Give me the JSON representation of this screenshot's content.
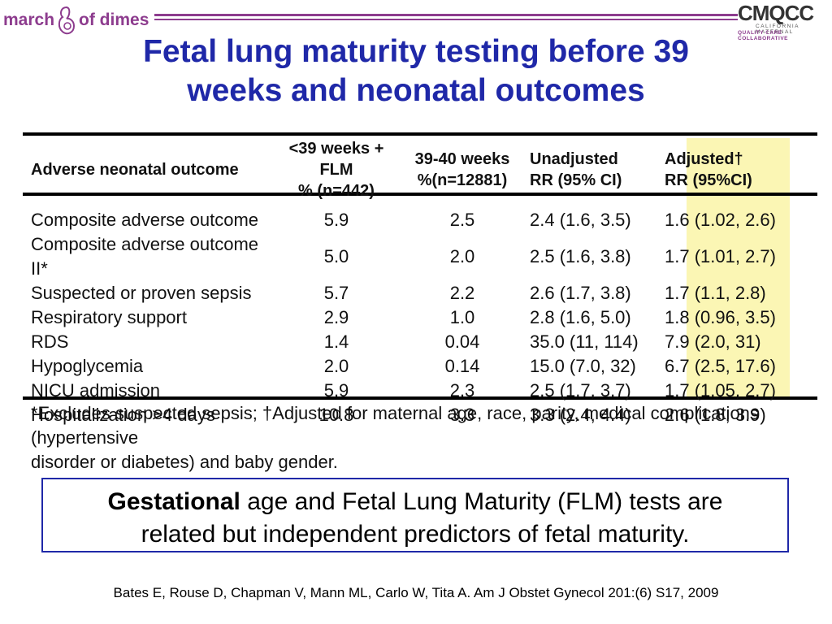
{
  "logos": {
    "left_part1": "march",
    "left_part2": "of dimes",
    "right_main": "CMQCC",
    "right_line1": "CALIFORNIA MATERNAL",
    "right_line2": "QUALITY CARE COLLABORATIVE"
  },
  "title_line1": "Fetal lung maturity testing before 39",
  "title_line2": "weeks and neonatal outcomes",
  "table": {
    "headers": [
      {
        "line1": "Adverse neonatal outcome",
        "line2": ""
      },
      {
        "line1": "<39 weeks + FLM",
        "line2": "% (n=442)"
      },
      {
        "line1": "39-40 weeks",
        "line2": "%(n=12881)"
      },
      {
        "line1": "Unadjusted",
        "line2": "RR (95% CI)"
      },
      {
        "line1": "Adjusted†",
        "line2": "RR (95%CI)"
      }
    ],
    "rows": [
      [
        "Composite adverse outcome",
        "5.9",
        "2.5",
        "2.4 (1.6, 3.5)",
        "1.6 (1.02, 2.6)"
      ],
      [
        "Composite adverse outcome II*",
        "5.0",
        "2.0",
        "2.5 (1.6, 3.8)",
        "1.7 (1.01, 2.7)"
      ],
      [
        "Suspected or proven sepsis",
        "5.7",
        "2.2",
        "2.6 (1.7, 3.8)",
        "1.7 (1.1, 2.8)"
      ],
      [
        "Respiratory support",
        "2.9",
        "1.0",
        "2.8 (1.6, 5.0)",
        "1.8 (0.96, 3.5)"
      ],
      [
        "RDS",
        "1.4",
        "0.04",
        "35.0 (11, 114)",
        "7.9 (2.0, 31)"
      ],
      [
        "Hypoglycemia",
        "2.0",
        "0.14",
        "15.0 (7.0, 32)",
        "6.7 (2.5, 17.6)"
      ],
      [
        "NICU admission",
        "5.9",
        "2.3",
        "2.5 (1.7, 3.7)",
        "1.7 (1.05, 2.7)"
      ],
      [
        "Hospitalization >4 days",
        "10.8",
        "3.3",
        "3.3 (2.4, 4.4)",
        "2.6 (1.8, 3.9)"
      ]
    ],
    "footnote_line1": "*Excludes suspected sepsis; †Adjusted for maternal age, race, parity, medical complications (hypertensive",
    "footnote_line2": "disorder or diabetes) and baby gender.",
    "highlight_color": "#fbf6b4"
  },
  "callout": {
    "bold": "Gestational",
    "rest_line1": " age and Fetal Lung Maturity (FLM) tests are",
    "line2": "related but independent predictors of fetal maturity."
  },
  "citation": "Bates E, Rouse D, Chapman V, Mann ML, Carlo W, Tita A.  Am J Obstet Gynecol 201:(6) S17, 2009",
  "colors": {
    "title": "#1f28a8",
    "brand_purple": "#8d3c8e",
    "callout_border": "#1f28a8"
  }
}
